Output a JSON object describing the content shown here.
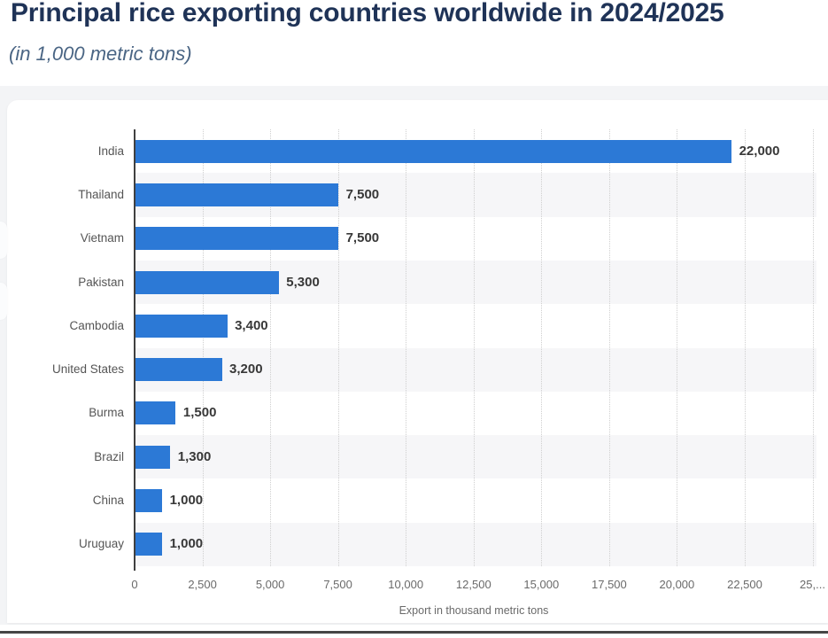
{
  "page": {
    "title": "Principal rice exporting countries worldwide in 2024/2025",
    "subtitle": "(in 1,000 metric tons)"
  },
  "chart_data": {
    "type": "bar",
    "orientation": "horizontal",
    "title": "Principal rice exporting countries worldwide in 2024/2025",
    "subtitle": "(in 1,000 metric tons)",
    "categories": [
      "India",
      "Thailand",
      "Vietnam",
      "Pakistan",
      "Cambodia",
      "United States",
      "Burma",
      "Brazil",
      "China",
      "Uruguay"
    ],
    "values": [
      22000,
      7500,
      7500,
      5300,
      3400,
      3200,
      1500,
      1300,
      1000,
      1000
    ],
    "value_labels": [
      "22,000",
      "7,500",
      "7,500",
      "5,300",
      "3,400",
      "3,200",
      "1,500",
      "1,300",
      "1,000",
      "1,000"
    ],
    "xlabel": "Export in thousand metric tons",
    "ylabel": "",
    "xlim": [
      0,
      25000
    ],
    "xticks": [
      {
        "value": 0,
        "label": "0"
      },
      {
        "value": 2500,
        "label": "2,500"
      },
      {
        "value": 5000,
        "label": "5,000"
      },
      {
        "value": 7500,
        "label": "7,500"
      },
      {
        "value": 10000,
        "label": "10,000"
      },
      {
        "value": 12500,
        "label": "12,500"
      },
      {
        "value": 15000,
        "label": "15,000"
      },
      {
        "value": 17500,
        "label": "17,500"
      },
      {
        "value": 20000,
        "label": "20,000"
      },
      {
        "value": 22500,
        "label": "22,500"
      },
      {
        "value": 25000,
        "label": "25,..."
      }
    ],
    "grid": "vertical-dotted",
    "legend": "none",
    "row_striping": "alternate even rows shaded",
    "colors": {
      "bar": "#2c79d6",
      "row_stripe": "#f6f6f8",
      "gridline": "#cfcfcf",
      "axis_line": "#404040",
      "title": "#1f3357",
      "subtitle": "#4a6584",
      "category_label": "#555555",
      "value_label": "#383838",
      "tick_label": "#6a6a6a",
      "page_band": "#f3f4f6",
      "bottom_rule": "#464646"
    }
  }
}
